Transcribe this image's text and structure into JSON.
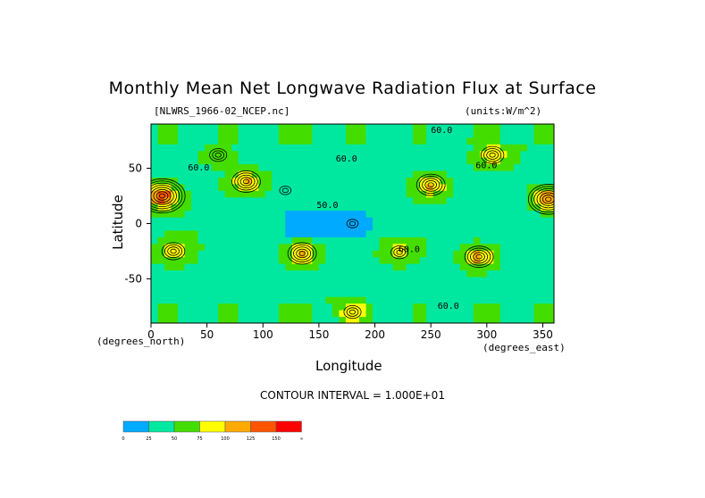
{
  "figure": {
    "title": "Monthly Mean Net Longwave Radiation Flux at Surface",
    "file_label": "[NLWRS_1966-02_NCEP.nc]",
    "units_label": "(units:W/m^2)",
    "x_unit": "(degrees_east)",
    "y_unit": "(degrees_north)",
    "contour_interval": "CONTOUR INTERVAL = 1.000E+01"
  },
  "chart_data": {
    "type": "heatmap",
    "title": "Monthly Mean Net Longwave Radiation Flux at Surface",
    "xlabel": "Longitude",
    "ylabel": "Latitude",
    "xlim": [
      0,
      360
    ],
    "ylim": [
      -90,
      90
    ],
    "x_ticks": [
      0,
      50,
      100,
      150,
      200,
      250,
      300,
      350
    ],
    "y_ticks": [
      -50,
      0,
      50
    ],
    "contour_labels": [
      {
        "text": "60.0",
        "lon": 33,
        "lat": 48
      },
      {
        "text": "50.0",
        "lon": 148,
        "lat": 14
      },
      {
        "text": "60.0",
        "lon": 290,
        "lat": 50
      },
      {
        "text": "60.0",
        "lon": 221,
        "lat": -26
      },
      {
        "text": "60.0",
        "lon": 250,
        "lat": 82
      },
      {
        "text": "60.0",
        "lon": 256,
        "lat": -77
      },
      {
        "text": "60.0",
        "lon": 165,
        "lat": 56
      }
    ],
    "colorbar": {
      "levels": [
        "0",
        "25",
        "50",
        "75",
        "100",
        "125",
        "150",
        "∞"
      ],
      "colors": [
        "#00aaff",
        "#00e8a0",
        "#44dd00",
        "#ffff00",
        "#ffaa00",
        "#ff5500",
        "#ff0000"
      ]
    },
    "regions": [
      {
        "lon": 180,
        "lat": 0,
        "value": 30
      },
      {
        "lon": 120,
        "lat": 30,
        "value": 55
      },
      {
        "lon": 10,
        "lat": 25,
        "value": 150
      },
      {
        "lon": 355,
        "lat": 22,
        "value": 130
      },
      {
        "lon": 85,
        "lat": 38,
        "value": 110
      },
      {
        "lon": 250,
        "lat": 35,
        "value": 110
      },
      {
        "lon": 20,
        "lat": -25,
        "value": 100
      },
      {
        "lon": 135,
        "lat": -27,
        "value": 115
      },
      {
        "lon": 293,
        "lat": -30,
        "value": 115
      },
      {
        "lon": 222,
        "lat": -26,
        "value": 90
      },
      {
        "lon": 305,
        "lat": 62,
        "value": 100
      },
      {
        "lon": 60,
        "lat": 62,
        "value": 85
      },
      {
        "lon": 180,
        "lat": -80,
        "value": 90
      }
    ]
  }
}
